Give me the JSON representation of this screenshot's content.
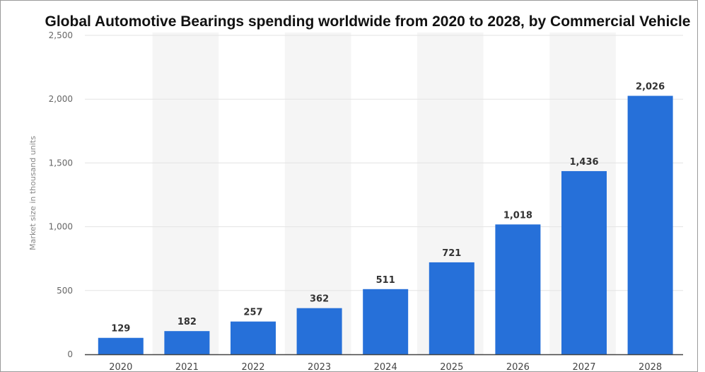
{
  "colors": {
    "bar": "#2670d9",
    "band": "#f5f5f5",
    "grid": "#e3e3e3",
    "axis": "#444444",
    "frame": "#9a9a9a"
  },
  "chart_data": {
    "type": "bar",
    "title": "Global Automotive Bearings spending worldwide from 2020 to 2028, by Commercial Vehicle",
    "xlabel": "",
    "ylabel": "Market size in thousand units",
    "categories": [
      "2020",
      "2021",
      "2022",
      "2023",
      "2024",
      "2025",
      "2026",
      "2027",
      "2028"
    ],
    "values": [
      129,
      182,
      257,
      362,
      511,
      721,
      1018,
      1436,
      2026
    ],
    "value_labels": [
      "129",
      "182",
      "257",
      "362",
      "511",
      "721",
      "1,018",
      "1,436",
      "2,026"
    ],
    "ylim": [
      0,
      2500
    ],
    "yticks": [
      0,
      500,
      1000,
      1500,
      2000,
      2500
    ],
    "ytick_labels": [
      "0",
      "500",
      "1,000",
      "1,500",
      "2,000",
      "2,500"
    ],
    "grid": true,
    "alternating_bands": true
  }
}
